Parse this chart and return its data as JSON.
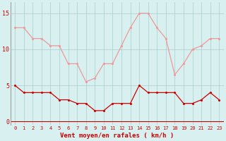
{
  "hours": [
    0,
    1,
    2,
    3,
    4,
    5,
    6,
    7,
    8,
    9,
    10,
    11,
    12,
    13,
    14,
    15,
    16,
    17,
    18,
    19,
    20,
    21,
    22,
    23
  ],
  "wind_gust": [
    13,
    13,
    11.5,
    11.5,
    10.5,
    10.5,
    8,
    8,
    5.5,
    6,
    8,
    8,
    10.5,
    13,
    15,
    15,
    13,
    11.5,
    6.5,
    8,
    10,
    10.5,
    11.5,
    11.5
  ],
  "wind_avg": [
    5,
    4,
    4,
    4,
    4,
    3,
    3,
    2.5,
    2.5,
    1.5,
    1.5,
    2.5,
    2.5,
    2.5,
    5,
    4,
    4,
    4,
    4,
    2.5,
    2.5,
    3,
    4,
    3
  ],
  "avg_color": "#cc0000",
  "gust_color": "#ee9999",
  "bg_color": "#d8f0f0",
  "grid_color": "#aacccc",
  "xlabel": "Vent moyen/en rafales ( km/h )",
  "yticks": [
    0,
    5,
    10,
    15
  ],
  "ylim": [
    -0.5,
    16.5
  ],
  "xlim": [
    -0.5,
    23.5
  ]
}
